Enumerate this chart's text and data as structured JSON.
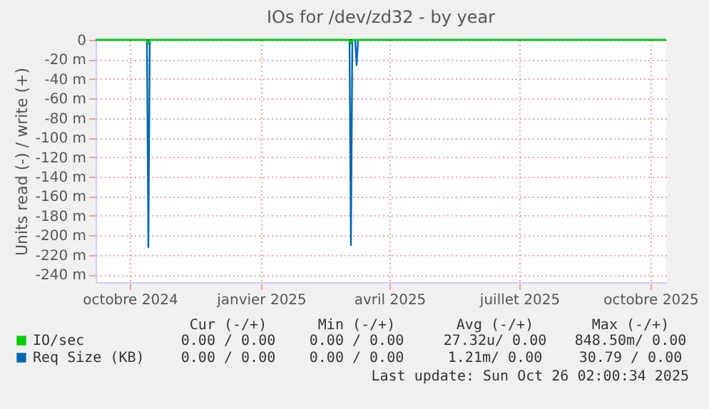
{
  "chart_data": {
    "type": "line",
    "title": "IOs for /dev/zd32 - by year",
    "ylabel": "Units read (-) / write (+)",
    "xlim": [
      "2024-09-07",
      "2025-10-12"
    ],
    "ylim": [
      -248,
      0
    ],
    "xticks": [
      {
        "value": "2024-10-01",
        "label": "octobre 2024"
      },
      {
        "value": "2025-01-01",
        "label": "janvier 2025"
      },
      {
        "value": "2025-04-01",
        "label": "avril 2025"
      },
      {
        "value": "2025-07-01",
        "label": "juillet 2025"
      },
      {
        "value": "2025-10-01",
        "label": "octobre 2025"
      }
    ],
    "yticks": [
      {
        "value": 0,
        "label": "0"
      },
      {
        "value": -20,
        "label": "-20 m"
      },
      {
        "value": -40,
        "label": "-40 m"
      },
      {
        "value": -60,
        "label": "-60 m"
      },
      {
        "value": -80,
        "label": "-80 m"
      },
      {
        "value": -100,
        "label": "-100 m"
      },
      {
        "value": -120,
        "label": "-120 m"
      },
      {
        "value": -140,
        "label": "-140 m"
      },
      {
        "value": -160,
        "label": "-160 m"
      },
      {
        "value": -180,
        "label": "-180 m"
      },
      {
        "value": -200,
        "label": "-200 m"
      },
      {
        "value": -220,
        "label": "-220 m"
      },
      {
        "value": -240,
        "label": "-240 m"
      }
    ],
    "grid": true,
    "legend": "bottom left",
    "series": [
      {
        "name": "IO/sec",
        "color": "#00cc00",
        "x": [
          "2024-09-07",
          "2024-10-13",
          "2024-10-14",
          "2024-10-15",
          "2025-03-04",
          "2025-03-05",
          "2025-03-06",
          "2025-10-12"
        ],
        "values": [
          0,
          0,
          -4,
          0,
          0,
          -4,
          0,
          0
        ]
      },
      {
        "name": "Req Size (KB)",
        "color": "#0066b3",
        "x": [
          "2024-09-07",
          "2024-10-13",
          "2024-10-14",
          "2024-10-15",
          "2025-03-04",
          "2025-03-05",
          "2025-03-06",
          "2025-03-08",
          "2025-03-09",
          "2025-03-10",
          "2025-10-12"
        ],
        "values": [
          0,
          0,
          -212,
          0,
          0,
          -210,
          0,
          0,
          -26,
          0,
          0
        ]
      }
    ],
    "ref_lines": [
      {
        "axis": "y",
        "value": 0,
        "color": "#000000"
      }
    ],
    "annotations": [
      "Cur (-/+)",
      "Min (-/+)",
      "Avg (-/+)",
      "Max (-/+)",
      "0.00 / 0.00",
      "0.00 / 0.00",
      "27.32u/ 0.00",
      "848.50m/ 0.00",
      "0.00 / 0.00",
      "0.00 / 0.00",
      "1.21m/ 0.00",
      "30.79 / 0.00",
      "Last update: Sun Oct 26 02:00:34 2025"
    ]
  }
}
